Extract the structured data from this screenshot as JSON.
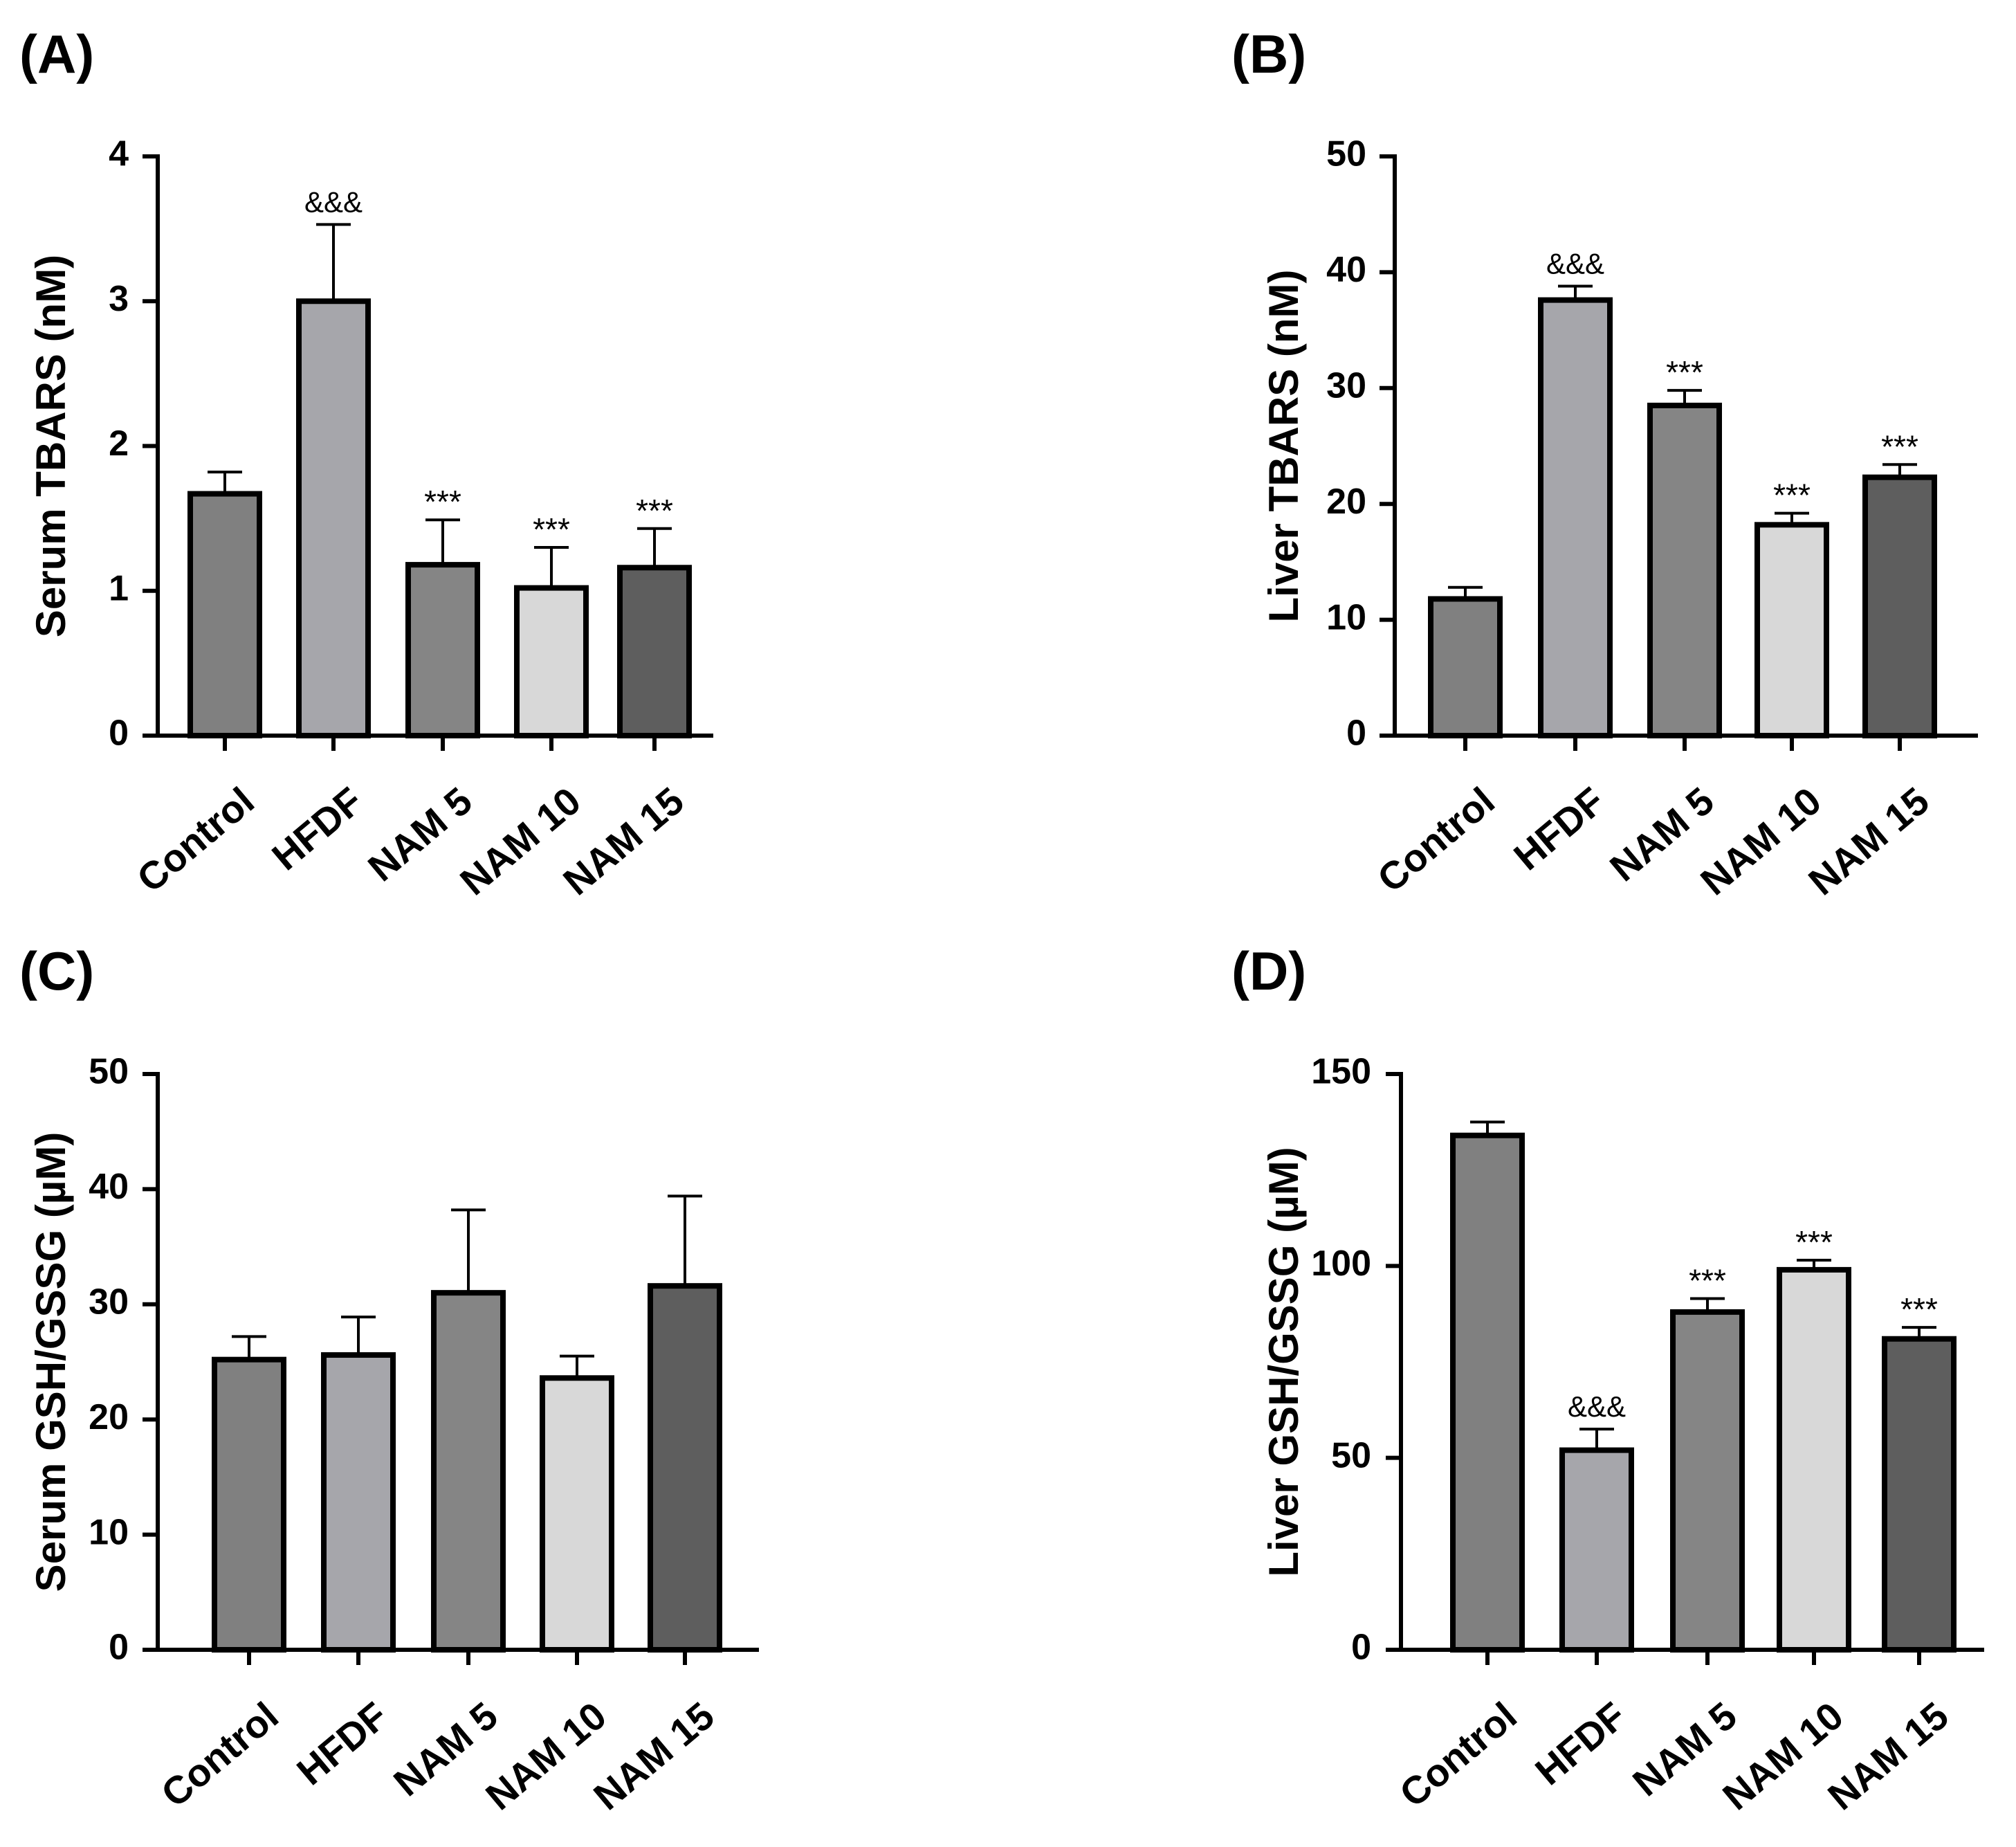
{
  "colors": {
    "Control": "#808080",
    "HFDF": "#a6a6ab",
    "NAM 5": "#858585",
    "NAM 10": "#d8d8d8",
    "NAM 15": "#5e5e5e",
    "stroke": "#000000"
  },
  "chart_data": [
    {
      "panel": "(A)",
      "type": "bar",
      "ylabel": "Serum TBARS (nM)",
      "categories": [
        "Control",
        "HFDF",
        "NAM 5",
        "NAM 10",
        "NAM 15"
      ],
      "values": [
        1.67,
        3.0,
        1.18,
        1.02,
        1.16
      ],
      "errors": [
        0.15,
        0.53,
        0.31,
        0.28,
        0.27
      ],
      "annotations": [
        "",
        "&&&",
        "***",
        "***",
        "***"
      ],
      "ylim": [
        0,
        4
      ],
      "yticks": [
        0,
        1,
        2,
        3,
        4
      ]
    },
    {
      "panel": "(B)",
      "type": "bar",
      "ylabel": "Liver TBARS (nM)",
      "categories": [
        "Control",
        "HFDF",
        "NAM 5",
        "NAM 10",
        "NAM 15"
      ],
      "values": [
        11.8,
        37.6,
        28.5,
        18.2,
        22.3
      ],
      "errors": [
        1.0,
        1.2,
        1.3,
        1.0,
        1.1
      ],
      "annotations": [
        "",
        "&&&",
        "***",
        "***",
        "***"
      ],
      "ylim": [
        0,
        50
      ],
      "yticks": [
        0,
        10,
        20,
        30,
        40,
        50
      ]
    },
    {
      "panel": "(C)",
      "type": "bar",
      "ylabel": "Serum GSH/GSSG (µM)",
      "categories": [
        "Control",
        "HFDF",
        "NAM 5",
        "NAM 10",
        "NAM 15"
      ],
      "values": [
        25.2,
        25.6,
        31.0,
        23.6,
        31.6
      ],
      "errors": [
        2.0,
        3.3,
        7.2,
        1.9,
        7.8
      ],
      "annotations": [
        "",
        "",
        "",
        "",
        ""
      ],
      "ylim": [
        0,
        50
      ],
      "yticks": [
        0,
        10,
        20,
        30,
        40,
        50
      ]
    },
    {
      "panel": "(D)",
      "type": "bar",
      "ylabel": "Liver GSH/GSSG (µM)",
      "categories": [
        "Control",
        "HFDF",
        "NAM 5",
        "NAM 10",
        "NAM 15"
      ],
      "values": [
        134,
        52,
        88,
        99,
        81
      ],
      "errors": [
        3.5,
        5.5,
        3.5,
        2.5,
        3.0
      ],
      "annotations": [
        "",
        "&&&",
        "***",
        "***",
        "***"
      ],
      "ylim": [
        0,
        150
      ],
      "yticks": [
        0,
        50,
        100,
        150
      ]
    }
  ]
}
